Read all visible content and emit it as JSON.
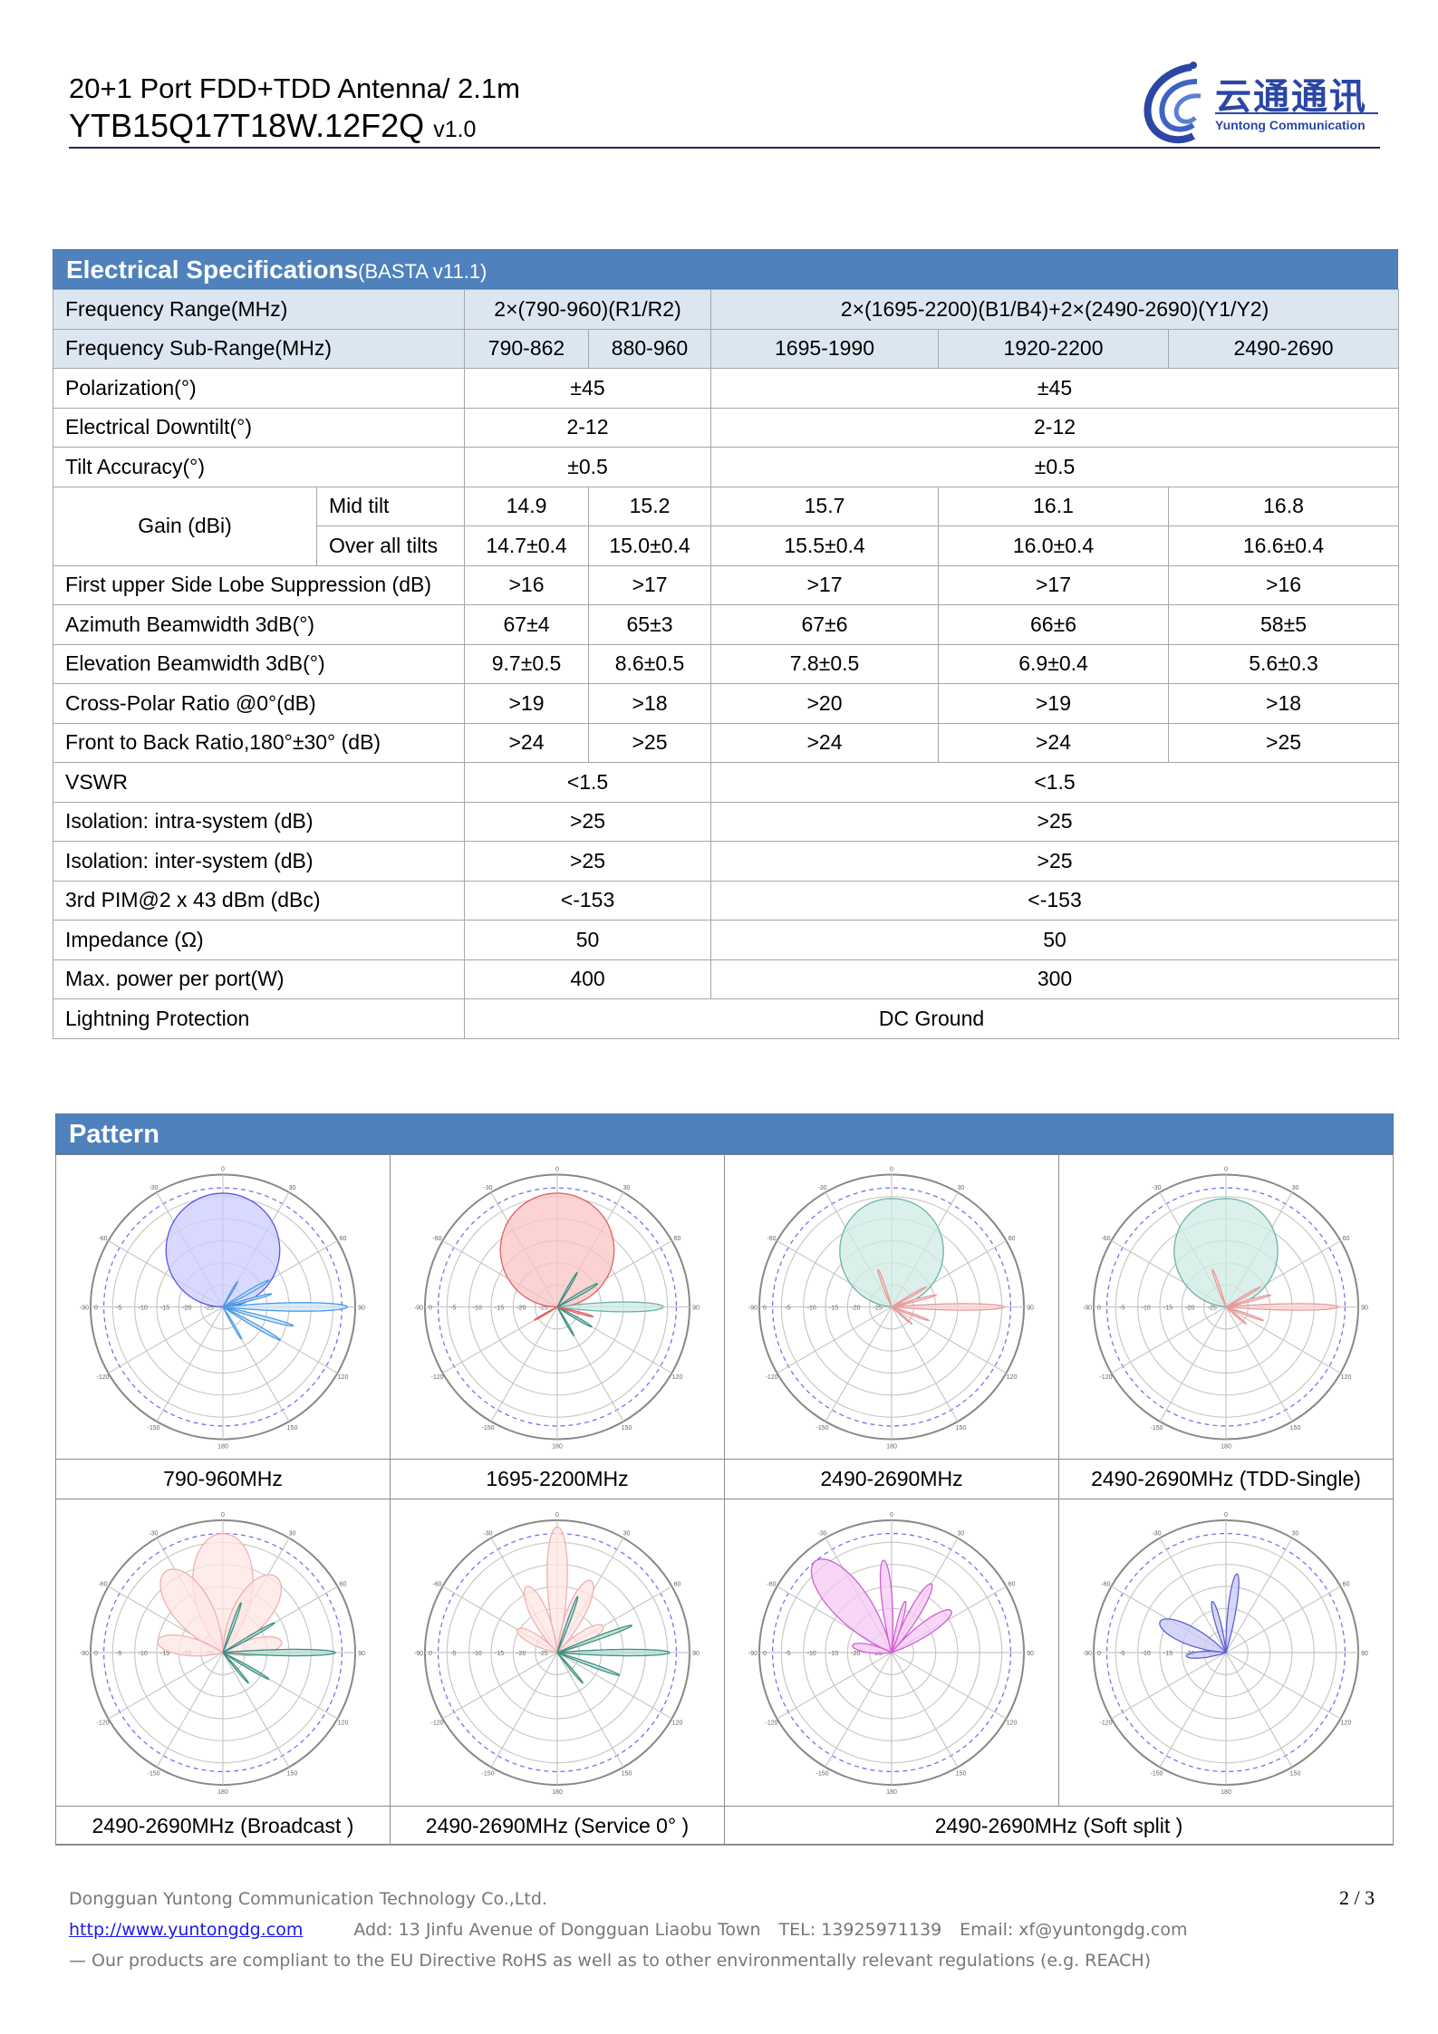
{
  "header": {
    "title": "20+1 Port FDD+TDD Antenna/ 2.1m",
    "model": "YTB15Q17T18W.12F2Q",
    "version": "v1.0",
    "logo": {
      "cn": "云通通讯",
      "en": "Yuntong Communication"
    }
  },
  "colors": {
    "section_header": "#4f81bd",
    "row_highlight": "#dce6f1",
    "brand": "#2b46a5"
  },
  "spec": {
    "title": "Electrical Specifications",
    "subtitle": "(BASTA v11.1)",
    "freq_range": {
      "label": "Frequency Range(MHz)",
      "low": "2×(790-960)(R1/R2)",
      "high": "2×(1695-2200)(B1/B4)+2×(2490-2690)(Y1/Y2)"
    },
    "sub_range": {
      "label": "Frequency Sub-Range(MHz)",
      "values": [
        "790-862",
        "880-960",
        "1695-1990",
        "1920-2200",
        "2490-2690"
      ]
    },
    "polarization": {
      "label": "Polarization(°)",
      "low": "±45",
      "high": "±45"
    },
    "downtilt": {
      "label": "Electrical Downtilt(°)",
      "low": "2-12",
      "high": "2-12"
    },
    "tilt_accuracy": {
      "label": "Tilt Accuracy(°)",
      "low": "±0.5",
      "high": "±0.5"
    },
    "gain": {
      "label": "Gain (dBi)",
      "mid_label": "Mid tilt",
      "mid": [
        "14.9",
        "15.2",
        "15.7",
        "16.1",
        "16.8"
      ],
      "all_label": "Over all tilts",
      "all": [
        "14.7±0.4",
        "15.0±0.4",
        "15.5±0.4",
        "16.0±0.4",
        "16.6±0.4"
      ]
    },
    "per_band_rows": [
      {
        "label": "First upper Side Lobe Suppression (dB)",
        "values": [
          ">16",
          ">17",
          ">17",
          ">17",
          ">16"
        ]
      },
      {
        "label": "Azimuth Beamwidth 3dB(°)",
        "values": [
          "67±4",
          "65±3",
          "67±6",
          "66±6",
          "58±5"
        ]
      },
      {
        "label": "Elevation Beamwidth 3dB(°)",
        "values": [
          "9.7±0.5",
          "8.6±0.5",
          "7.8±0.5",
          "6.9±0.4",
          "5.6±0.3"
        ]
      },
      {
        "label": "Cross-Polar Ratio @0°(dB)",
        "values": [
          ">19",
          ">18",
          ">20",
          ">19",
          ">18"
        ]
      },
      {
        "label": "Front to Back Ratio,180°±30° (dB)",
        "values": [
          ">24",
          ">25",
          ">24",
          ">24",
          ">25"
        ]
      }
    ],
    "system_rows": [
      {
        "label": "VSWR",
        "low": "<1.5",
        "high": "<1.5"
      },
      {
        "label": "Isolation: intra-system (dB)",
        "low": ">25",
        "high": ">25"
      },
      {
        "label": "Isolation: inter-system (dB)",
        "low": ">25",
        "high": ">25"
      },
      {
        "label": "3rd PIM@2 x 43 dBm (dBc)",
        "low": "<-153",
        "high": "<-153"
      },
      {
        "label": "Impedance (Ω)",
        "low": "50",
        "high": "50"
      },
      {
        "label": "Max. power per port(W)",
        "low": "400",
        "high": "300"
      }
    ],
    "lightning": {
      "label": "Lightning Protection",
      "value": "DC Ground"
    }
  },
  "pattern": {
    "title": "Pattern",
    "row1_captions": [
      "790-960MHz",
      "1695-2200MHz",
      "2490-2690MHz",
      "2490-2690MHz (TDD-Single)"
    ],
    "row2_captions": [
      "2490-2690MHz (Broadcast )",
      "2490-2690MHz (Service 0° )",
      "2490-2690MHz (Soft split )"
    ],
    "angle_labels": [
      "0",
      "30",
      "60",
      "90",
      "120",
      "150",
      "180",
      "-150",
      "-120",
      "-90",
      "-60",
      "-30"
    ],
    "radial_labels": [
      "0",
      "-5",
      "-10",
      "-15",
      "-20",
      "-25"
    ]
  },
  "footer": {
    "company": "Dongguan Yuntong Communication Technology Co.,Ltd.",
    "website": "http://www.yuntongdg.com",
    "address": "Add:  13 Jinfu Avenue   of Dongguan Liaobu Town",
    "tel": "TEL:  13925971139",
    "email": "Email:  xf@yuntongdg.com",
    "compliance": "— Our products are compliant to the EU Directive RoHS as well as to other environmentally relevant regulations (e.g. REACH)",
    "page": "2 / 3"
  }
}
